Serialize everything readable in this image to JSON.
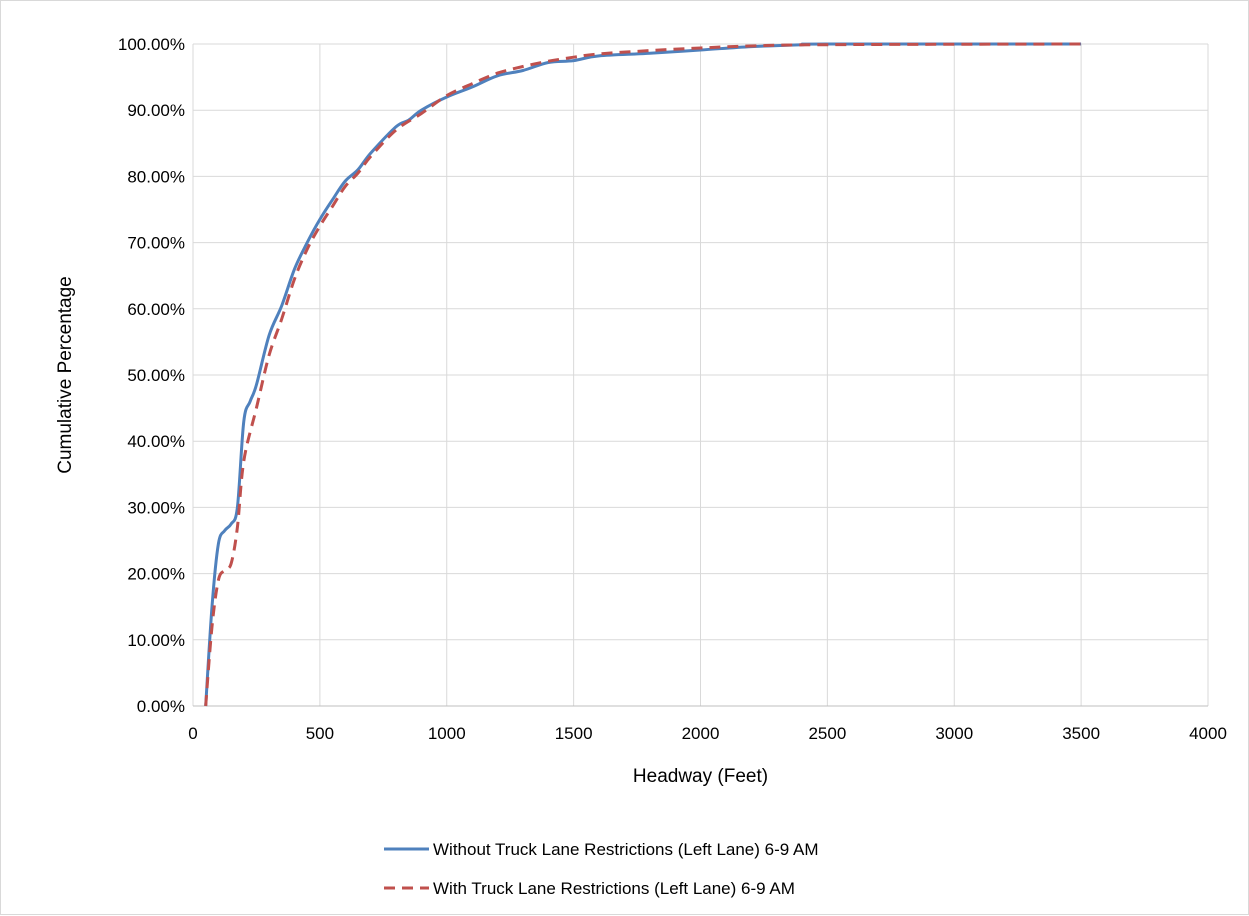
{
  "chart_data": {
    "type": "line",
    "title": "",
    "xlabel": "Headway (Feet)",
    "ylabel": "Cumulative Percentage",
    "xlim": [
      0,
      4000
    ],
    "ylim": [
      0,
      1
    ],
    "x_ticks": [
      "0",
      "500",
      "1000",
      "1500",
      "2000",
      "2500",
      "3000",
      "3500",
      "4000"
    ],
    "y_ticks": [
      "0.00%",
      "10.00%",
      "20.00%",
      "30.00%",
      "40.00%",
      "50.00%",
      "60.00%",
      "70.00%",
      "80.00%",
      "90.00%",
      "100.00%"
    ],
    "grid": true,
    "legend_position": "bottom",
    "series": [
      {
        "name": "Without Truck Lane Restrictions (Left Lane) 6-9 AM",
        "color": "#4f81bd",
        "dash": "solid",
        "points": [
          [
            50,
            0.0
          ],
          [
            75,
            0.15
          ],
          [
            100,
            0.245
          ],
          [
            125,
            0.265
          ],
          [
            150,
            0.275
          ],
          [
            175,
            0.3
          ],
          [
            200,
            0.43
          ],
          [
            225,
            0.46
          ],
          [
            250,
            0.485
          ],
          [
            300,
            0.56
          ],
          [
            350,
            0.605
          ],
          [
            400,
            0.66
          ],
          [
            450,
            0.7
          ],
          [
            500,
            0.735
          ],
          [
            550,
            0.765
          ],
          [
            600,
            0.793
          ],
          [
            650,
            0.81
          ],
          [
            700,
            0.835
          ],
          [
            800,
            0.875
          ],
          [
            850,
            0.885
          ],
          [
            900,
            0.9
          ],
          [
            1000,
            0.92
          ],
          [
            1100,
            0.935
          ],
          [
            1200,
            0.952
          ],
          [
            1300,
            0.96
          ],
          [
            1400,
            0.972
          ],
          [
            1500,
            0.975
          ],
          [
            1600,
            0.982
          ],
          [
            1800,
            0.986
          ],
          [
            2000,
            0.991
          ],
          [
            2200,
            0.996
          ],
          [
            2400,
            0.999
          ],
          [
            2500,
            1.0
          ],
          [
            3500,
            1.0
          ]
        ]
      },
      {
        "name": "With Truck Lane Restrictions (Left Lane) 6-9 AM",
        "color": "#c0504d",
        "dash": "dashed",
        "points": [
          [
            50,
            0.0
          ],
          [
            75,
            0.12
          ],
          [
            100,
            0.19
          ],
          [
            125,
            0.205
          ],
          [
            150,
            0.215
          ],
          [
            175,
            0.27
          ],
          [
            200,
            0.37
          ],
          [
            250,
            0.45
          ],
          [
            300,
            0.53
          ],
          [
            350,
            0.585
          ],
          [
            400,
            0.645
          ],
          [
            450,
            0.69
          ],
          [
            500,
            0.725
          ],
          [
            550,
            0.755
          ],
          [
            600,
            0.785
          ],
          [
            650,
            0.805
          ],
          [
            700,
            0.83
          ],
          [
            800,
            0.87
          ],
          [
            900,
            0.895
          ],
          [
            1000,
            0.922
          ],
          [
            1100,
            0.94
          ],
          [
            1200,
            0.956
          ],
          [
            1300,
            0.966
          ],
          [
            1400,
            0.974
          ],
          [
            1500,
            0.98
          ],
          [
            1600,
            0.985
          ],
          [
            1800,
            0.99
          ],
          [
            2000,
            0.994
          ],
          [
            2200,
            0.997
          ],
          [
            2500,
            0.999
          ],
          [
            3500,
            1.0
          ]
        ]
      }
    ]
  }
}
